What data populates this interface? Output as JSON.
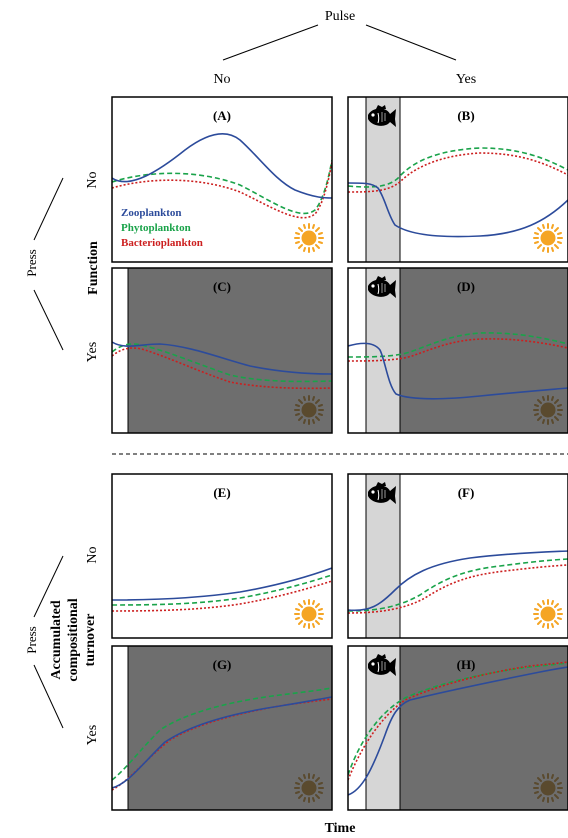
{
  "pulse": {
    "title": "Pulse",
    "no": "No",
    "yes": "Yes"
  },
  "press": {
    "title": "Press",
    "no": "No",
    "yes": "Yes"
  },
  "row_labels": {
    "function": "Function",
    "turnover_1": "Accumulated",
    "turnover_2": "compositional",
    "turnover_3": "turnover"
  },
  "x_axis": "Time",
  "legend": {
    "zooplankton": "Zooplankton",
    "phytoplankton": "Phytoplankton",
    "bacterioplankton": "Bacterioplankton"
  },
  "colors": {
    "zooplankton": "#2c4b9b",
    "phytoplankton": "#1aa34a",
    "bacterioplankton": "#cc1f1f",
    "press_shade": "#6e6e6e",
    "pulse_shade": "#d6d6d6",
    "sun_light": "#f5a524",
    "sun_dark": "#5a4a2e"
  },
  "icons": {
    "pulse": "fish-icon",
    "light": "sun-icon"
  },
  "panels": [
    {
      "id": "A",
      "label": "(A)",
      "pulse": false,
      "press": false,
      "legend": true
    },
    {
      "id": "B",
      "label": "(B)",
      "pulse": true,
      "press": false,
      "legend": false
    },
    {
      "id": "C",
      "label": "(C)",
      "pulse": false,
      "press": true,
      "legend": false
    },
    {
      "id": "D",
      "label": "(D)",
      "pulse": true,
      "press": true,
      "legend": false
    },
    {
      "id": "E",
      "label": "(E)",
      "pulse": false,
      "press": false,
      "legend": false
    },
    {
      "id": "F",
      "label": "(F)",
      "pulse": true,
      "press": false,
      "legend": false
    },
    {
      "id": "G",
      "label": "(G)",
      "pulse": false,
      "press": true,
      "legend": false
    },
    {
      "id": "H",
      "label": "(H)",
      "pulse": true,
      "press": true,
      "legend": false
    }
  ]
}
